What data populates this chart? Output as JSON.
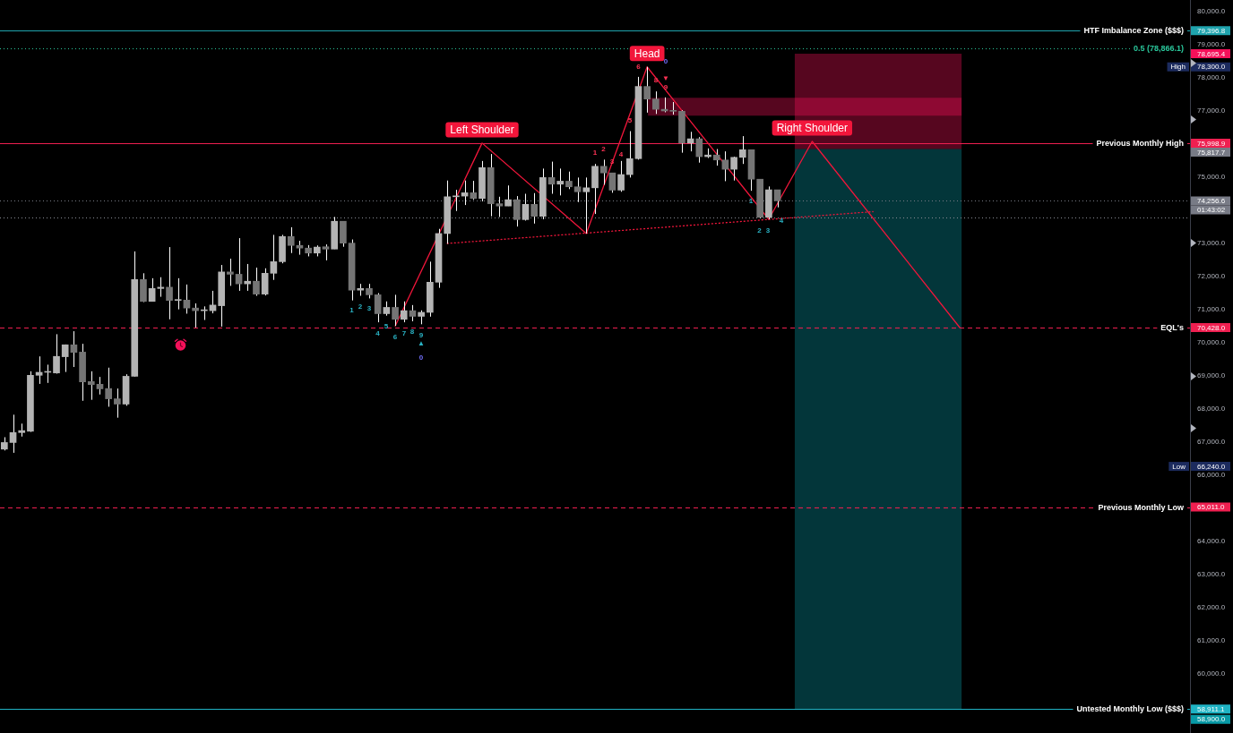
{
  "chart_data": {
    "type": "candlestick",
    "categories": [
      null,
      null,
      null,
      null,
      null,
      null,
      null,
      null,
      null,
      null,
      null,
      null,
      null,
      null,
      null,
      null,
      null,
      null,
      null,
      null,
      null,
      null,
      null,
      null,
      null,
      null,
      null,
      null,
      null,
      null,
      null,
      null,
      null,
      null,
      null,
      null,
      null,
      null,
      null,
      null,
      null,
      null,
      null,
      null,
      null,
      null,
      null,
      null,
      null,
      null,
      null,
      null,
      null,
      null,
      null,
      null,
      null,
      null,
      null,
      null,
      null,
      null,
      null,
      null,
      null,
      null,
      null,
      null,
      null,
      null,
      null,
      null,
      null,
      null,
      null,
      null,
      null,
      null,
      null,
      null,
      null,
      null,
      null,
      null,
      null,
      null,
      null,
      null,
      null,
      null,
      null,
      null,
      null,
      null,
      null,
      null,
      null,
      null,
      null,
      null,
      null,
      null,
      null,
      null,
      null,
      null,
      null,
      null,
      null,
      null,
      null,
      null,
      null,
      null,
      null,
      null,
      null,
      null,
      null,
      null,
      null,
      null,
      null,
      null,
      null,
      null,
      null,
      null,
      null,
      null,
      null,
      null,
      null,
      null,
      null,
      null,
      null
    ],
    "series": [
      {
        "color": "#ffffff",
        "ohlc": [
          [
            66760,
            67120,
            66720,
            66960
          ],
          [
            66960,
            67800,
            66650,
            67260
          ],
          [
            67260,
            67530,
            67140,
            67320
          ],
          [
            67300,
            69110,
            67280,
            68990
          ],
          [
            68990,
            69560,
            68730,
            69080
          ],
          [
            69080,
            69310,
            68760,
            69090
          ],
          [
            69060,
            70230,
            69040,
            69560
          ],
          [
            69550,
            69920,
            69090,
            69910
          ],
          [
            69910,
            70320,
            69240,
            69680
          ],
          [
            69690,
            69940,
            68220,
            68790
          ],
          [
            68800,
            69110,
            68250,
            68710
          ],
          [
            68720,
            68940,
            68410,
            68580
          ],
          [
            68590,
            69220,
            68040,
            68280
          ],
          [
            68280,
            68590,
            67710,
            68120
          ],
          [
            68120,
            69020,
            68070,
            68960
          ],
          [
            68960,
            72730,
            68950,
            71880
          ],
          [
            71880,
            72070,
            71200,
            71220
          ],
          [
            71220,
            71920,
            71220,
            71610
          ],
          [
            71610,
            71950,
            71360,
            71650
          ],
          [
            71650,
            72860,
            70680,
            71250
          ],
          [
            71250,
            71920,
            70980,
            71260
          ],
          [
            71260,
            71730,
            70850,
            71020
          ],
          [
            71020,
            71160,
            70430,
            70940
          ],
          [
            70940,
            71070,
            70660,
            70950
          ],
          [
            70940,
            71540,
            70860,
            71110
          ],
          [
            71090,
            72320,
            70460,
            72110
          ],
          [
            72110,
            72510,
            71690,
            72040
          ],
          [
            72040,
            73130,
            71540,
            71750
          ],
          [
            71750,
            72350,
            71540,
            71830
          ],
          [
            71830,
            72240,
            71390,
            71440
          ],
          [
            71440,
            72220,
            71400,
            72070
          ],
          [
            72070,
            73230,
            71870,
            72420
          ],
          [
            72420,
            73230,
            72370,
            73180
          ],
          [
            73180,
            73460,
            72680,
            72910
          ],
          [
            72910,
            73050,
            72630,
            72830
          ],
          [
            72830,
            72920,
            72580,
            72680
          ],
          [
            72680,
            72910,
            72580,
            72860
          ],
          [
            72870,
            72940,
            72460,
            72800
          ],
          [
            72800,
            73770,
            72800,
            73640
          ],
          [
            73640,
            73640,
            72870,
            72980
          ],
          [
            72980,
            73090,
            71250,
            71560
          ],
          [
            71560,
            71750,
            71390,
            71610
          ],
          [
            71610,
            71750,
            71310,
            71420
          ],
          [
            71420,
            71470,
            70590,
            70850
          ],
          [
            70850,
            71220,
            70790,
            71040
          ],
          [
            71040,
            71420,
            70480,
            70680
          ],
          [
            70680,
            71220,
            70590,
            70940
          ],
          [
            70940,
            71110,
            70620,
            70770
          ],
          [
            70770,
            70950,
            70530,
            70890
          ],
          [
            70890,
            72420,
            70760,
            71800
          ],
          [
            71800,
            73410,
            71630,
            73270
          ],
          [
            73270,
            74870,
            72960,
            74380
          ],
          [
            74380,
            74590,
            73950,
            74400
          ],
          [
            74400,
            74870,
            74130,
            74500
          ],
          [
            74500,
            74860,
            74290,
            74330
          ],
          [
            74330,
            75460,
            74240,
            75260
          ],
          [
            75260,
            75670,
            73790,
            74170
          ],
          [
            74170,
            74380,
            73770,
            74100
          ],
          [
            74100,
            74720,
            74100,
            74290
          ],
          [
            74290,
            74400,
            73480,
            73690
          ],
          [
            73690,
            74470,
            73660,
            74150
          ],
          [
            74150,
            74490,
            73570,
            73790
          ],
          [
            73790,
            75230,
            73700,
            74960
          ],
          [
            74960,
            75440,
            74470,
            74760
          ],
          [
            74760,
            75230,
            74420,
            74850
          ],
          [
            74850,
            75140,
            74610,
            74680
          ],
          [
            74680,
            74960,
            74220,
            74530
          ],
          [
            74530,
            74960,
            73270,
            74650
          ],
          [
            74650,
            75370,
            73860,
            75300
          ],
          [
            75300,
            75500,
            74740,
            75100
          ],
          [
            75100,
            75100,
            74500,
            74580
          ],
          [
            74580,
            75460,
            74530,
            75050
          ],
          [
            75050,
            76360,
            74960,
            75530
          ],
          [
            75530,
            78000,
            75500,
            77710
          ],
          [
            77710,
            78300,
            76920,
            77330
          ],
          [
            77330,
            77560,
            76880,
            77020
          ],
          [
            77020,
            77380,
            76930,
            76970
          ],
          [
            76970,
            77240,
            76860,
            76960
          ],
          [
            76960,
            76990,
            75710,
            76000
          ],
          [
            76000,
            76340,
            75750,
            76130
          ],
          [
            76130,
            76180,
            75410,
            75590
          ],
          [
            75590,
            75840,
            75550,
            75640
          ],
          [
            75640,
            75820,
            75320,
            75490
          ],
          [
            75490,
            75750,
            74850,
            75210
          ],
          [
            75210,
            75590,
            74870,
            75570
          ],
          [
            75570,
            76210,
            75370,
            75800
          ],
          [
            75800,
            75800,
            74560,
            74910
          ],
          [
            74910,
            74910,
            73730,
            73760
          ],
          [
            73760,
            74690,
            73700,
            74590
          ],
          [
            74590,
            74590,
            74060,
            74256.6
          ],
          null,
          null,
          null,
          null,
          null,
          null,
          null,
          null,
          null,
          null,
          null,
          null,
          null,
          null,
          null,
          null,
          null,
          null,
          null,
          null,
          null,
          null,
          null,
          null,
          null,
          null,
          null,
          null,
          null,
          null,
          null,
          null,
          null,
          null,
          null,
          null,
          null,
          null,
          null,
          null,
          null,
          null,
          null,
          null,
          null,
          null,
          null
        ],
        "colors": [
          "#b4b4b4",
          "#b4b4b4",
          "#b4b4b4",
          "#b4b4b4",
          "#b4b4b4",
          "#b4b4b4",
          "#b4b4b4",
          "#b4b4b4",
          "#757575",
          "#757575",
          "#757575",
          "#757575",
          "#757575",
          "#757575",
          "#b4b4b4",
          "#b4b4b4",
          "#757575",
          "#b4b4b4",
          "#b4b4b4",
          "#757575",
          "#b4b4b4",
          "#757575",
          "#757575",
          "#b4b4b4",
          "#b4b4b4",
          "#b4b4b4",
          "#757575",
          "#757575",
          "#b4b4b4",
          "#757575",
          "#b4b4b4",
          "#b4b4b4",
          "#b4b4b4",
          "#757575",
          "#757575",
          "#757575",
          "#b4b4b4",
          "#757575",
          "#b4b4b4",
          "#757575",
          "#757575",
          "#b4b4b4",
          "#757575",
          "#757575",
          "#b4b4b4",
          "#757575",
          "#b4b4b4",
          "#757575",
          "#b4b4b4",
          "#b4b4b4",
          "#b4b4b4",
          "#b4b4b4",
          "#b4b4b4",
          "#b4b4b4",
          "#757575",
          "#b4b4b4",
          "#757575",
          "#757575",
          "#b4b4b4",
          "#757575",
          "#b4b4b4",
          "#757575",
          "#b4b4b4",
          "#757575",
          "#b4b4b4",
          "#757575",
          "#757575",
          "#b4b4b4",
          "#b4b4b4",
          "#757575",
          "#757575",
          "#b4b4b4",
          "#b4b4b4",
          "#b4b4b4",
          "#757575",
          "#757575",
          "#757575",
          "#757575",
          "#757575",
          "#b4b4b4",
          "#757575",
          "#b4b4b4",
          "#757575",
          "#757575",
          "#b4b4b4",
          "#b4b4b4",
          "#757575",
          "#757575",
          "#b4b4b4",
          "#757575",
          null,
          null,
          null,
          null,
          null,
          null,
          null,
          null,
          null,
          null,
          null,
          null,
          null,
          null,
          null,
          null,
          null,
          null,
          null,
          null,
          null,
          null,
          null,
          null,
          null,
          null,
          null,
          null,
          null,
          null,
          null,
          null,
          null,
          null,
          null,
          null,
          null,
          null,
          null,
          null,
          null,
          null,
          null,
          null,
          null,
          null,
          null
        ]
      },
      {
        "type": "line",
        "color": "#f2163b",
        "line_style": "solid",
        "values": [
          null,
          null,
          null,
          null,
          null,
          null,
          null,
          null,
          null,
          null,
          null,
          null,
          null,
          null,
          null,
          null,
          null,
          null,
          null,
          null,
          null,
          null,
          null,
          null,
          null,
          null,
          null,
          null,
          null,
          null,
          null,
          null,
          null,
          null,
          null,
          null,
          null,
          null,
          null,
          null,
          null,
          null,
          null,
          null,
          null,
          70480,
          null,
          null,
          null,
          null,
          null,
          null,
          null,
          null,
          null,
          76000,
          null,
          null,
          null,
          null,
          null,
          null,
          null,
          null,
          null,
          null,
          null,
          73270,
          null,
          null,
          null,
          null,
          null,
          null,
          78300,
          null,
          null,
          null,
          null,
          null,
          null,
          null,
          null,
          null,
          null,
          null,
          null,
          null,
          73700,
          null,
          null,
          null,
          null,
          76050,
          null,
          null,
          null,
          null,
          null,
          null,
          null,
          null,
          null,
          null,
          null,
          null,
          null,
          null,
          null,
          null,
          70430,
          null,
          null,
          null,
          null,
          null,
          null,
          null,
          null,
          null,
          null,
          null,
          null,
          null,
          null,
          null,
          null,
          null,
          null,
          null,
          null,
          null,
          null,
          null,
          null,
          null,
          null
        ],
        "value_labels": [
          null,
          null,
          null,
          null,
          null,
          null,
          null,
          null,
          null,
          null,
          null,
          null,
          null,
          null,
          null,
          null,
          null,
          null,
          null,
          null,
          null,
          null,
          null,
          null,
          null,
          null,
          null,
          null,
          null,
          null,
          null,
          null,
          null,
          null,
          null,
          null,
          null,
          null,
          null,
          null,
          null,
          null,
          null,
          null,
          null,
          null,
          null,
          null,
          null,
          null,
          null,
          null,
          null,
          null,
          null,
          "Left Shoulder",
          null,
          null,
          null,
          null,
          null,
          null,
          null,
          null,
          null,
          null,
          null,
          null,
          null,
          null,
          null,
          null,
          null,
          null,
          "Head",
          null,
          null,
          null,
          null,
          null,
          null,
          null,
          null,
          null,
          null,
          null,
          null,
          null,
          null,
          null,
          null,
          null,
          null,
          "Right Shoulder",
          null,
          null,
          null,
          null,
          null,
          null,
          null,
          null,
          null,
          null,
          null,
          null,
          null,
          null,
          null,
          null,
          null,
          null,
          null,
          null,
          null,
          null,
          null,
          null,
          null,
          null,
          null,
          null,
          null,
          null,
          null,
          null,
          null,
          null,
          null,
          null,
          null,
          null,
          null,
          null,
          null,
          null,
          null
        ]
      },
      {
        "type": "line",
        "color": "#f2163b",
        "line_style": "dotted",
        "values": [
          null,
          null,
          null,
          null,
          null,
          null,
          null,
          null,
          null,
          null,
          null,
          null,
          null,
          null,
          null,
          null,
          null,
          null,
          null,
          null,
          null,
          null,
          null,
          null,
          null,
          null,
          null,
          null,
          null,
          null,
          null,
          null,
          null,
          null,
          null,
          null,
          null,
          null,
          null,
          null,
          null,
          null,
          null,
          null,
          null,
          null,
          null,
          null,
          null,
          null,
          null,
          72970,
          null,
          null,
          null,
          null,
          null,
          null,
          null,
          null,
          null,
          null,
          null,
          null,
          null,
          null,
          null,
          null,
          null,
          null,
          null,
          null,
          null,
          null,
          null,
          null,
          null,
          null,
          null,
          null,
          null,
          null,
          null,
          null,
          null,
          null,
          null,
          null,
          null,
          null,
          null,
          null,
          null,
          null,
          null,
          null,
          null,
          null,
          null,
          null,
          73930,
          null,
          null,
          null,
          null,
          null,
          null,
          null,
          null,
          null,
          null,
          null,
          null,
          null,
          null,
          null,
          null,
          null,
          null,
          null,
          null,
          null,
          null,
          null,
          null,
          null,
          null,
          null,
          null,
          null,
          null,
          null,
          null,
          null,
          null,
          null,
          null
        ]
      }
    ],
    "ylim": [
      58190,
      80320
    ],
    "yticks": [
      {
        "value": 58911.1,
        "label": "58,911.1"
      },
      {
        "value": 60000,
        "label": "60,000.0"
      },
      {
        "value": 61000,
        "label": "61,000.0"
      },
      {
        "value": 62000,
        "label": "62,000.0"
      },
      {
        "value": 63000,
        "label": "63,000.0"
      },
      {
        "value": 64000,
        "label": "64,000.0"
      },
      {
        "value": 65011,
        "label": "65,011.0"
      },
      {
        "value": 66000,
        "label": "66,000.0"
      },
      {
        "value": 66240,
        "label": "66,240.0"
      },
      {
        "value": 67000,
        "label": "67,000.0"
      },
      {
        "value": 68000,
        "label": "68,000.0"
      },
      {
        "value": 69000,
        "label": "69,000.0"
      },
      {
        "value": 70000,
        "label": "70,000.0"
      },
      {
        "value": 70428,
        "label": "70,428.0"
      },
      {
        "value": 71000,
        "label": "71,000.0"
      },
      {
        "value": 72000,
        "label": "72,000.0"
      },
      {
        "value": 73000,
        "label": "73,000.0"
      },
      {
        "value": 74256.6,
        "label": "74,256.6"
      },
      {
        "value": 75000,
        "label": "75,000.0"
      },
      {
        "value": 75817.7,
        "label": "75,817.7"
      },
      {
        "value": 75998.9,
        "label": "75,998.9"
      },
      {
        "value": 77000,
        "label": "77,000.0"
      },
      {
        "value": 78000,
        "label": "78,000.0"
      },
      {
        "value": 78300,
        "label": "78,300.0"
      },
      {
        "value": 78695.4,
        "label": "78,695.4"
      },
      {
        "value": 79000,
        "label": "79,000.0"
      },
      {
        "value": 79396.8,
        "label": "79,396.8"
      },
      {
        "value": 80000,
        "label": "80,000.0"
      }
    ],
    "tick_labels": "y",
    "ref_lines": [
      {
        "axis": "y",
        "value": 79396.8,
        "label": "HTF Imbalance Zone ($$$)",
        "color": "#1fa3ad",
        "line_style": "solid"
      },
      {
        "axis": "y",
        "value": 78866.1,
        "label": "0.5 (78,866.1)",
        "color": "#2ac79b",
        "line_style": "dotted"
      },
      {
        "axis": "y",
        "value": 75998.9,
        "label": "Previous Monthly High",
        "color": "#ef1f50",
        "line_style": "solid"
      },
      {
        "axis": "y",
        "value": 74256.6,
        "label": null,
        "color": "#787b86",
        "line_style": "dotted"
      },
      {
        "axis": "y",
        "value": 73760,
        "label": null,
        "color": "#8a8d96",
        "line_style": "dotted"
      },
      {
        "axis": "y",
        "value": 70428,
        "label": "EQL's",
        "color": "#ef1f50",
        "line_style": "dashed"
      },
      {
        "axis": "y",
        "value": 65011,
        "label": "Previous Monthly Low",
        "color": "#ef1f50",
        "line_style": "dashed"
      },
      {
        "axis": "y",
        "value": 58911.1,
        "label": "Untested Monthly Low ($$$)",
        "color": "#1fb3c4",
        "line_style": "solid"
      }
    ],
    "bands": [
      {
        "axis": "y",
        "from": 76830,
        "to": 77370,
        "color": "#f5105a"
      },
      {
        "axis": "y",
        "from": 75817.7,
        "to": 78695.4,
        "color": "#f5105a"
      },
      {
        "axis": "y",
        "from": 58900,
        "to": 75817.7,
        "color": "#089aa6"
      }
    ],
    "annotations": [
      "High",
      "Low",
      "01:43:02",
      "1",
      "2",
      "3",
      "4",
      "5",
      "6",
      "7",
      "8",
      "9",
      "▲",
      "0",
      "1",
      "2",
      "3",
      "4",
      "5",
      "6",
      "8",
      "9",
      "▼",
      "0",
      "1",
      "2",
      "3",
      "4",
      "58,900.0"
    ]
  }
}
